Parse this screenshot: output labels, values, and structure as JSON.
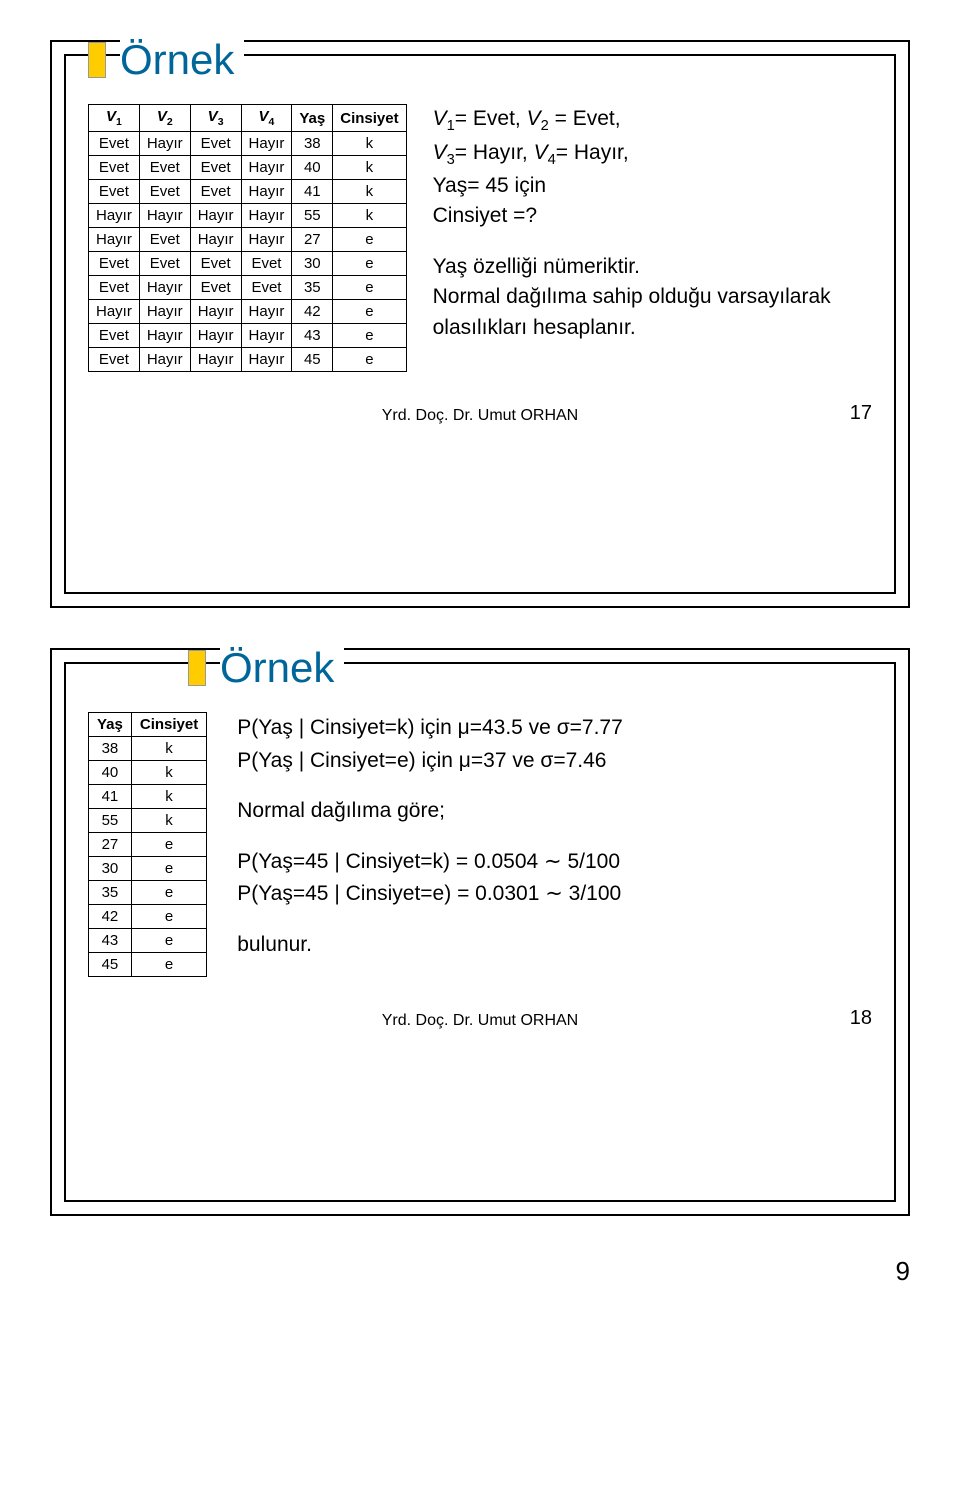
{
  "page_number": "9",
  "footer_author": "Yrd. Doç. Dr. Umut ORHAN",
  "slide1": {
    "title": "Örnek",
    "slide_num": "17",
    "table": {
      "headers": [
        "V₁",
        "V₂",
        "V₃",
        "V₄",
        "Yaş",
        "Cinsiyet"
      ],
      "hplain": [
        "V",
        "V",
        "V",
        "V",
        "Yaş",
        "Cinsiyet"
      ],
      "hsub": [
        "1",
        "2",
        "3",
        "4",
        "",
        ""
      ],
      "rows": [
        [
          "Evet",
          "Hayır",
          "Evet",
          "Hayır",
          "38",
          "k"
        ],
        [
          "Evet",
          "Evet",
          "Evet",
          "Hayır",
          "40",
          "k"
        ],
        [
          "Evet",
          "Evet",
          "Evet",
          "Hayır",
          "41",
          "k"
        ],
        [
          "Hayır",
          "Hayır",
          "Hayır",
          "Hayır",
          "55",
          "k"
        ],
        [
          "Hayır",
          "Evet",
          "Hayır",
          "Hayır",
          "27",
          "e"
        ],
        [
          "Evet",
          "Evet",
          "Evet",
          "Evet",
          "30",
          "e"
        ],
        [
          "Evet",
          "Hayır",
          "Evet",
          "Evet",
          "35",
          "e"
        ],
        [
          "Hayır",
          "Hayır",
          "Hayır",
          "Hayır",
          "42",
          "e"
        ],
        [
          "Evet",
          "Hayır",
          "Hayır",
          "Hayır",
          "43",
          "e"
        ],
        [
          "Evet",
          "Hayır",
          "Hayır",
          "Hayır",
          "45",
          "e"
        ]
      ]
    },
    "text_l1a": "V",
    "text_l1b": "= Evet, ",
    "text_l1c": "V",
    "text_l1d": " = Evet,",
    "text_l2a": "V",
    "text_l2b": "= Hayır, ",
    "text_l2c": "V",
    "text_l2d": "= Hayır,",
    "text_l3": "Yaş= 45 için",
    "text_l4": "Cinsiyet =?",
    "text_l5": "Yaş özelliği nümeriktir.",
    "text_l6": "Normal dağılıma sahip olduğu varsayılarak olasılıkları hesaplanır.",
    "sub1": "1",
    "sub2": "2",
    "sub3": "3",
    "sub4": "4"
  },
  "slide2": {
    "title": "Örnek",
    "slide_num": "18",
    "table": {
      "headers": [
        "Yaş",
        "Cinsiyet"
      ],
      "rows": [
        [
          "38",
          "k"
        ],
        [
          "40",
          "k"
        ],
        [
          "41",
          "k"
        ],
        [
          "55",
          "k"
        ],
        [
          "27",
          "e"
        ],
        [
          "30",
          "e"
        ],
        [
          "35",
          "e"
        ],
        [
          "42",
          "e"
        ],
        [
          "43",
          "e"
        ],
        [
          "45",
          "e"
        ]
      ]
    },
    "line1": "P(Yaş | Cinsiyet=k) için μ=43.5 ve σ=7.77",
    "line2": "P(Yaş | Cinsiyet=e) için μ=37 ve σ=7.46",
    "line3": "Normal dağılıma göre;",
    "line4": "P(Yaş=45 | Cinsiyet=k) = 0.0504 ∼ 5/100",
    "line5": "P(Yaş=45 | Cinsiyet=e) = 0.0301 ∼ 3/100",
    "line6": "bulunur."
  }
}
